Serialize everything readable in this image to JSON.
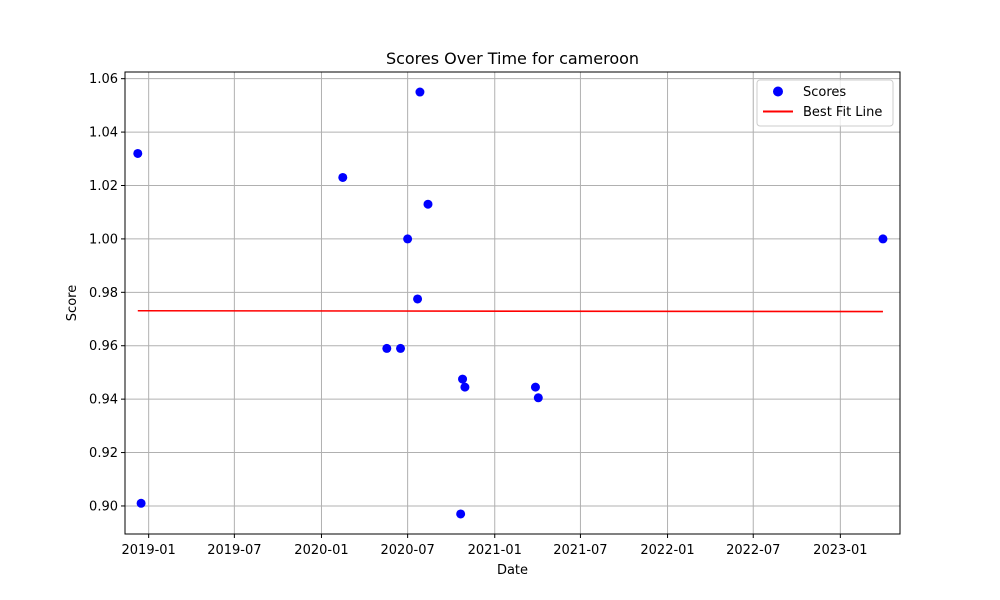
{
  "chart_data": {
    "type": "scatter",
    "title": "Scores Over Time for cameroon",
    "xlabel": "Date",
    "ylabel": "Score",
    "grid": true,
    "legend_position": "top-right",
    "xlim": [
      "2018-11-12",
      "2023-05-07"
    ],
    "ylim": [
      0.8895,
      1.0625
    ],
    "x_ticks": [
      {
        "date": "2019-01-01",
        "label": "2019-01"
      },
      {
        "date": "2019-07-01",
        "label": "2019-07"
      },
      {
        "date": "2020-01-01",
        "label": "2020-01"
      },
      {
        "date": "2020-07-01",
        "label": "2020-07"
      },
      {
        "date": "2021-01-01",
        "label": "2021-01"
      },
      {
        "date": "2021-07-01",
        "label": "2021-07"
      },
      {
        "date": "2022-01-01",
        "label": "2022-01"
      },
      {
        "date": "2022-07-01",
        "label": "2022-07"
      },
      {
        "date": "2023-01-01",
        "label": "2023-01"
      }
    ],
    "y_ticks": [
      {
        "value": 0.9,
        "label": "0.90"
      },
      {
        "value": 0.92,
        "label": "0.92"
      },
      {
        "value": 0.94,
        "label": "0.94"
      },
      {
        "value": 0.96,
        "label": "0.96"
      },
      {
        "value": 0.98,
        "label": "0.98"
      },
      {
        "value": 1.0,
        "label": "1.00"
      },
      {
        "value": 1.02,
        "label": "1.02"
      },
      {
        "value": 1.04,
        "label": "1.04"
      },
      {
        "value": 1.06,
        "label": "1.06"
      }
    ],
    "series": [
      {
        "name": "Scores",
        "kind": "scatter",
        "color": "#0000ff",
        "points": [
          {
            "x": "2018-12-09",
            "y": 1.032
          },
          {
            "x": "2018-12-16",
            "y": 0.901
          },
          {
            "x": "2020-02-15",
            "y": 1.023
          },
          {
            "x": "2020-05-18",
            "y": 0.959
          },
          {
            "x": "2020-06-16",
            "y": 0.959
          },
          {
            "x": "2020-07-01",
            "y": 1.0
          },
          {
            "x": "2020-07-22",
            "y": 0.9775
          },
          {
            "x": "2020-07-27",
            "y": 1.055
          },
          {
            "x": "2020-08-13",
            "y": 1.013
          },
          {
            "x": "2020-10-21",
            "y": 0.897
          },
          {
            "x": "2020-10-25",
            "y": 0.9475
          },
          {
            "x": "2020-10-30",
            "y": 0.9445
          },
          {
            "x": "2021-03-28",
            "y": 0.9445
          },
          {
            "x": "2021-04-03",
            "y": 0.9405
          },
          {
            "x": "2023-04-01",
            "y": 1.0
          }
        ]
      },
      {
        "name": "Best Fit Line",
        "kind": "line",
        "color": "#ff0000",
        "points": [
          {
            "x": "2018-12-09",
            "y": 0.9731
          },
          {
            "x": "2023-04-01",
            "y": 0.9728
          }
        ]
      }
    ]
  }
}
